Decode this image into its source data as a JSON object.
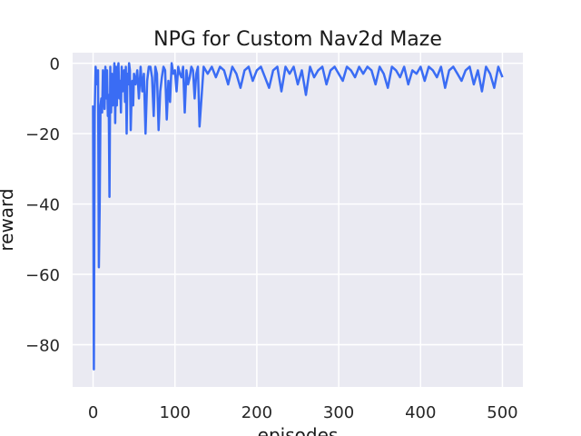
{
  "chart_data": {
    "type": "line",
    "title": "NPG for Custom Nav2d Maze",
    "xlabel": "episodes",
    "ylabel": "reward",
    "xlim": [
      -25,
      525
    ],
    "ylim": [
      -92,
      3
    ],
    "xticks": [
      0,
      100,
      200,
      300,
      400,
      500
    ],
    "xtick_labels": [
      "0",
      "100",
      "200",
      "300",
      "400",
      "500"
    ],
    "yticks": [
      0,
      -20,
      -40,
      -60,
      -80
    ],
    "ytick_labels": [
      "0",
      "−20",
      "−40",
      "−60",
      "−80"
    ],
    "grid": true,
    "background": "#eaeaf2",
    "grid_color": "#ffffff",
    "line_color": "#3a6cf4",
    "series": [
      {
        "x": [
          0,
          1,
          2,
          3,
          4,
          5,
          6,
          7,
          8,
          9,
          10,
          11,
          12,
          13,
          14,
          15,
          16,
          17,
          18,
          19,
          20,
          21,
          22,
          23,
          24,
          25,
          26,
          27,
          28,
          29,
          30,
          31,
          32,
          33,
          34,
          35,
          36,
          37,
          38,
          39,
          40,
          41,
          42,
          43,
          44,
          45,
          46,
          47,
          48,
          49,
          50,
          52,
          54,
          56,
          58,
          60,
          62,
          64,
          66,
          68,
          70,
          72,
          74,
          76,
          78,
          80,
          82,
          84,
          86,
          88,
          90,
          92,
          94,
          96,
          98,
          100,
          102,
          104,
          106,
          108,
          110,
          112,
          114,
          116,
          118,
          120,
          122,
          124,
          126,
          128,
          130,
          135,
          140,
          145,
          150,
          155,
          160,
          165,
          170,
          175,
          180,
          185,
          190,
          195,
          200,
          205,
          210,
          215,
          220,
          225,
          230,
          235,
          240,
          245,
          250,
          255,
          260,
          265,
          270,
          275,
          280,
          285,
          290,
          295,
          300,
          305,
          310,
          315,
          320,
          325,
          330,
          335,
          340,
          345,
          350,
          355,
          360,
          365,
          370,
          375,
          380,
          385,
          390,
          395,
          400,
          405,
          410,
          415,
          420,
          425,
          430,
          435,
          440,
          445,
          450,
          455,
          460,
          465,
          470,
          475,
          480,
          485,
          490,
          495,
          500
        ],
        "y": [
          -12,
          -87,
          -14,
          -1,
          -3,
          -6,
          -2,
          -58,
          -41,
          -12,
          -10,
          -14,
          -2,
          -5,
          -13,
          -1,
          -10,
          -2,
          -15,
          -9,
          -38,
          -1,
          -14,
          -3,
          -12,
          -6,
          0,
          -17,
          -1,
          -12,
          -2,
          0,
          -10,
          -5,
          -14,
          -1,
          -8,
          -4,
          -2,
          -11,
          -1,
          -20,
          -3,
          -6,
          0,
          -2,
          -19,
          -10,
          -5,
          -12,
          -3,
          -6,
          -2,
          -10,
          -1,
          -8,
          -3,
          -20,
          -5,
          -1,
          -1,
          -4,
          -15,
          -1,
          -3,
          -19,
          -8,
          -4,
          -1,
          -2,
          -16,
          -5,
          -11,
          0,
          -3,
          -2,
          -8,
          -1,
          -3,
          -4,
          -1,
          -14,
          -2,
          -6,
          -4,
          -1,
          -2,
          -10,
          -3,
          -1,
          -18,
          -1,
          -3,
          -1,
          -4,
          -1,
          -2,
          -6,
          -1,
          -3,
          -7,
          -2,
          -1,
          -5,
          -2,
          -1,
          -4,
          -7,
          -2,
          -1,
          -8,
          -1,
          -3,
          -1,
          -6,
          -2,
          -9,
          -1,
          -4,
          -2,
          -1,
          -6,
          -2,
          -1,
          -3,
          -5,
          -1,
          -2,
          -4,
          -1,
          -3,
          -1,
          -2,
          -6,
          -1,
          -3,
          -7,
          -1,
          -2,
          -4,
          -1,
          -6,
          -2,
          -3,
          -1,
          -5,
          -1,
          -2,
          -4,
          -1,
          -7,
          -2,
          -1,
          -3,
          -5,
          -2,
          -1,
          -6,
          -2,
          -8,
          -1,
          -3,
          -7,
          -1,
          -4
        ]
      }
    ]
  }
}
